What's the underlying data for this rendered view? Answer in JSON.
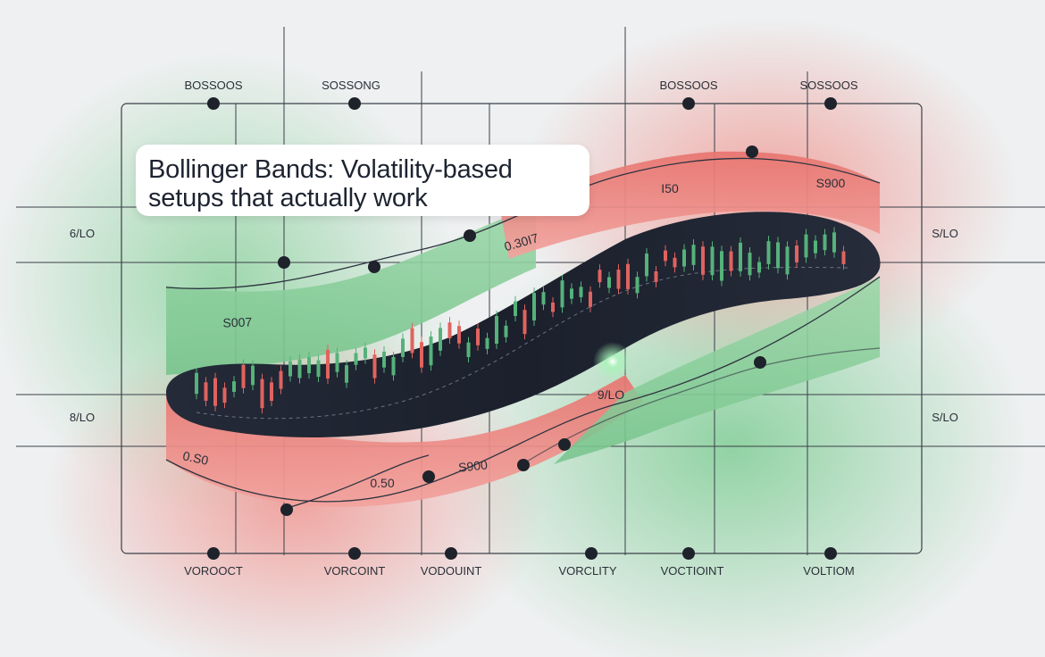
{
  "chart_data": {
    "type": "candlestick",
    "title_lines": [
      "Bollinger Bands: Volatility-based",
      "setups that actually work"
    ],
    "top_labels": [
      "BOSSOOS",
      "SOSSONG",
      "BOSSOOS",
      "SOSSOOS"
    ],
    "bottom_labels": [
      "VOROOCT",
      "VORCOINT",
      "VODOUINT",
      "VORCLITY",
      "VOCTIOINT",
      "VOLTIOM"
    ],
    "left_labels": [
      "6/LO",
      "8/LO"
    ],
    "right_labels": [
      "S/LO",
      "S/LO"
    ],
    "band_labels": [
      "S007",
      "0.30I7",
      "I50",
      "S900",
      "0.S0",
      "0.50",
      "S900",
      "9/LO"
    ],
    "colors": {
      "bullish": "#55b27a",
      "bearish": "#e0635f",
      "upper_band": "#e9817c",
      "lower_band": "#8fd0a0",
      "band_interior": "#1f2433",
      "grid": "#3a3f48"
    }
  }
}
